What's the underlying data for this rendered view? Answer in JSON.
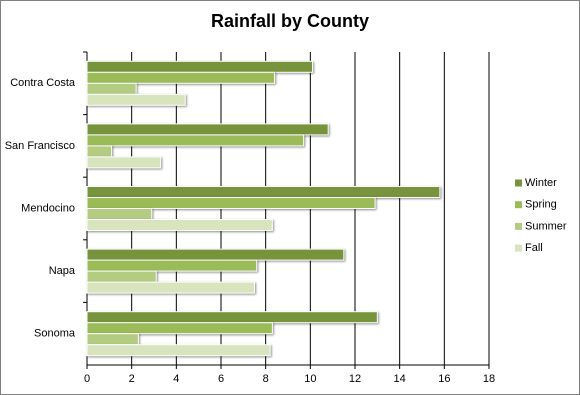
{
  "chart_data": {
    "type": "hbar",
    "title": "Rainfall by County",
    "categories": [
      "Contra Costa",
      "San Francisco",
      "Mendocino",
      "Napa",
      "Sonoma"
    ],
    "series": [
      {
        "name": "Winter",
        "color": "#77933c",
        "values": [
          10.1,
          10.8,
          15.8,
          11.5,
          13.0
        ]
      },
      {
        "name": "Spring",
        "color": "#9bbb59",
        "values": [
          8.4,
          9.7,
          12.9,
          7.6,
          8.3
        ]
      },
      {
        "name": "Summer",
        "color": "#b3cc82",
        "values": [
          2.2,
          1.1,
          2.9,
          3.1,
          2.3
        ]
      },
      {
        "name": "Fall",
        "color": "#d7e4bd",
        "values": [
          4.4,
          3.3,
          8.3,
          7.5,
          8.2
        ]
      }
    ],
    "xlim": [
      0,
      18
    ],
    "xticks": [
      0,
      2,
      4,
      6,
      8,
      10,
      12,
      14,
      16,
      18
    ],
    "grid": true,
    "legend": "right"
  }
}
